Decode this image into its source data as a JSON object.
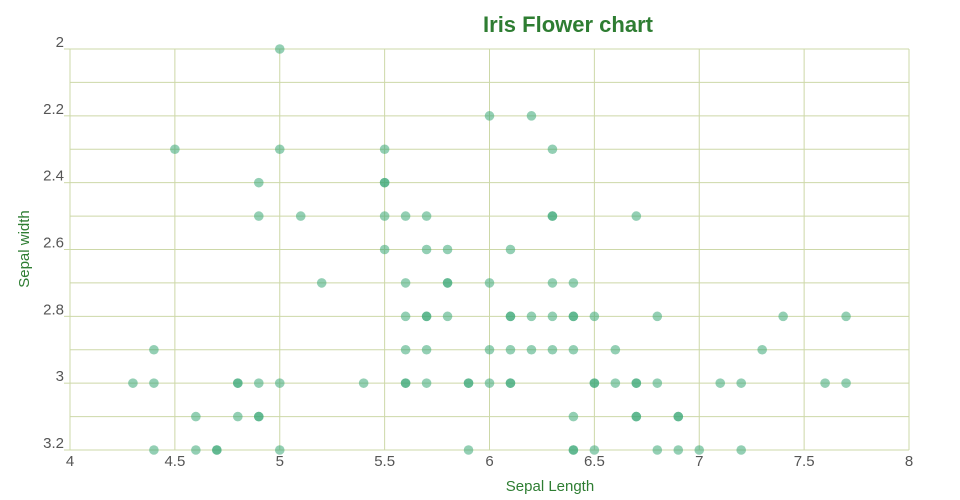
{
  "chart_data": {
    "type": "scatter",
    "title": "Iris Flower chart",
    "xlabel": "Sepal Length ",
    "ylabel": "Sepal width ",
    "xlim": [
      4,
      8
    ],
    "ylim": [
      2,
      3.2
    ],
    "y_reversed": true,
    "x_ticks": [
      "4",
      "4.5",
      "5",
      "5.5",
      "6",
      "6.5",
      "7",
      "7.5",
      "8"
    ],
    "y_ticks": [
      "2",
      "2.2",
      "2.4",
      "2.6",
      "2.8",
      "3",
      "3.2"
    ],
    "grid": true,
    "colors": {
      "title": "#2e7d32",
      "axis_label": "#2e7d32",
      "grid": "#cdd8a8",
      "point": "#3aa876"
    },
    "points": [
      [
        5.0,
        2.0
      ],
      [
        6.0,
        2.2
      ],
      [
        6.2,
        2.2
      ],
      [
        4.5,
        2.3
      ],
      [
        5.0,
        2.3
      ],
      [
        5.5,
        2.3
      ],
      [
        6.3,
        2.3
      ],
      [
        4.9,
        2.4
      ],
      [
        5.5,
        2.4
      ],
      [
        5.5,
        2.4
      ],
      [
        4.9,
        2.5
      ],
      [
        5.1,
        2.5
      ],
      [
        5.5,
        2.5
      ],
      [
        5.6,
        2.5
      ],
      [
        5.7,
        2.5
      ],
      [
        6.3,
        2.5
      ],
      [
        6.3,
        2.5
      ],
      [
        6.7,
        2.5
      ],
      [
        5.5,
        2.6
      ],
      [
        5.7,
        2.6
      ],
      [
        5.8,
        2.6
      ],
      [
        6.1,
        2.6
      ],
      [
        5.2,
        2.7
      ],
      [
        5.6,
        2.7
      ],
      [
        5.8,
        2.7
      ],
      [
        5.8,
        2.7
      ],
      [
        6.0,
        2.7
      ],
      [
        6.3,
        2.7
      ],
      [
        6.4,
        2.7
      ],
      [
        5.6,
        2.8
      ],
      [
        5.7,
        2.8
      ],
      [
        5.7,
        2.8
      ],
      [
        5.8,
        2.8
      ],
      [
        6.1,
        2.8
      ],
      [
        6.1,
        2.8
      ],
      [
        6.2,
        2.8
      ],
      [
        6.3,
        2.8
      ],
      [
        6.4,
        2.8
      ],
      [
        6.4,
        2.8
      ],
      [
        6.5,
        2.8
      ],
      [
        6.8,
        2.8
      ],
      [
        7.4,
        2.8
      ],
      [
        7.7,
        2.8
      ],
      [
        4.4,
        2.9
      ],
      [
        5.6,
        2.9
      ],
      [
        5.7,
        2.9
      ],
      [
        6.0,
        2.9
      ],
      [
        6.1,
        2.9
      ],
      [
        6.2,
        2.9
      ],
      [
        6.3,
        2.9
      ],
      [
        6.4,
        2.9
      ],
      [
        6.6,
        2.9
      ],
      [
        7.3,
        2.9
      ],
      [
        4.3,
        3.0
      ],
      [
        4.4,
        3.0
      ],
      [
        4.8,
        3.0
      ],
      [
        4.8,
        3.0
      ],
      [
        4.9,
        3.0
      ],
      [
        5.0,
        3.0
      ],
      [
        5.4,
        3.0
      ],
      [
        5.6,
        3.0
      ],
      [
        5.6,
        3.0
      ],
      [
        5.7,
        3.0
      ],
      [
        5.9,
        3.0
      ],
      [
        5.9,
        3.0
      ],
      [
        6.0,
        3.0
      ],
      [
        6.1,
        3.0
      ],
      [
        6.1,
        3.0
      ],
      [
        6.5,
        3.0
      ],
      [
        6.5,
        3.0
      ],
      [
        6.6,
        3.0
      ],
      [
        6.7,
        3.0
      ],
      [
        6.7,
        3.0
      ],
      [
        6.8,
        3.0
      ],
      [
        7.1,
        3.0
      ],
      [
        7.2,
        3.0
      ],
      [
        7.6,
        3.0
      ],
      [
        7.7,
        3.0
      ],
      [
        4.6,
        3.1
      ],
      [
        4.8,
        3.1
      ],
      [
        4.9,
        3.1
      ],
      [
        4.9,
        3.1
      ],
      [
        6.4,
        3.1
      ],
      [
        6.7,
        3.1
      ],
      [
        6.7,
        3.1
      ],
      [
        6.9,
        3.1
      ],
      [
        6.9,
        3.1
      ],
      [
        4.4,
        3.2
      ],
      [
        4.6,
        3.2
      ],
      [
        4.7,
        3.2
      ],
      [
        4.7,
        3.2
      ],
      [
        5.0,
        3.2
      ],
      [
        5.9,
        3.2
      ],
      [
        6.4,
        3.2
      ],
      [
        6.4,
        3.2
      ],
      [
        6.5,
        3.2
      ],
      [
        6.8,
        3.2
      ],
      [
        6.9,
        3.2
      ],
      [
        7.0,
        3.2
      ],
      [
        7.2,
        3.2
      ]
    ]
  }
}
